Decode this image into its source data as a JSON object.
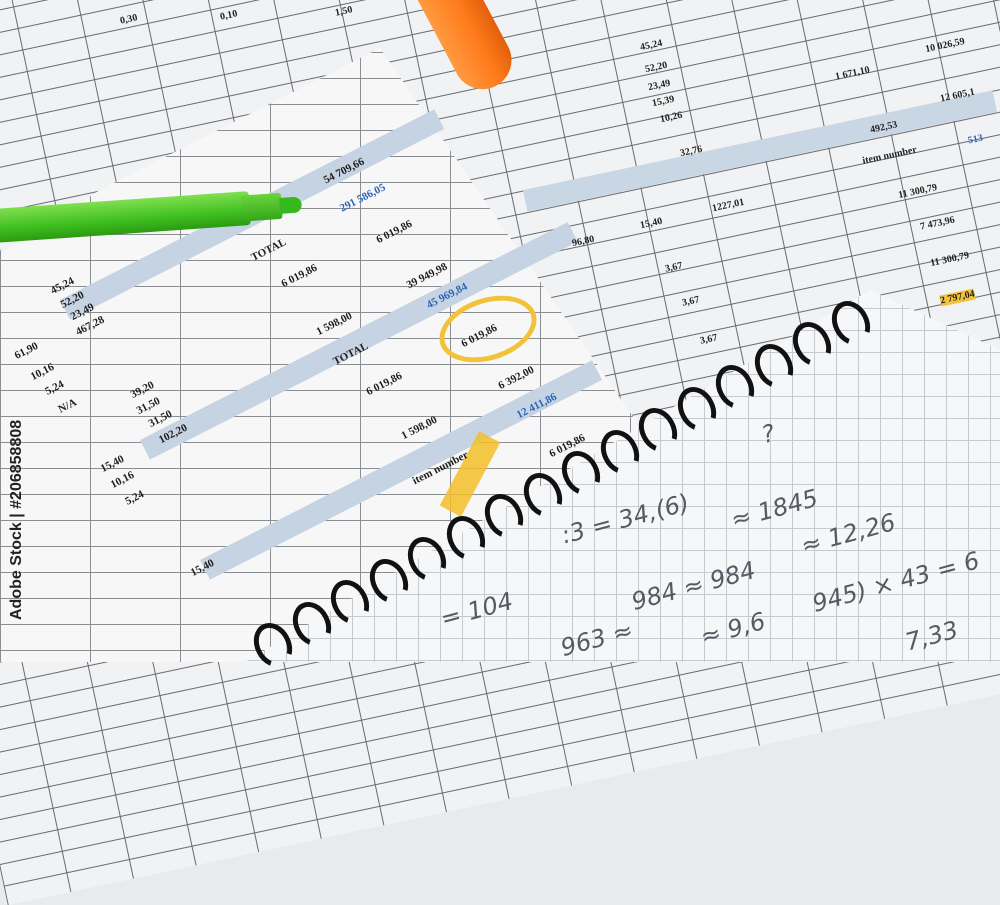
{
  "watermark": "Adobe Stock | #206858808",
  "background_sheet": {
    "values": [
      "0,30",
      "0,10",
      "1,50",
      "45,24",
      "52,20",
      "23,49",
      "15,39",
      "10,26",
      "32,76",
      "1 671,10",
      "10 026,59",
      "12 605,1",
      "492,53",
      "11 300,79",
      "7 473,96",
      "11 300,79",
      "2 797,04",
      "96,80",
      "15,40",
      "1227,01",
      "3,67",
      "3,67",
      "3,67",
      "item number",
      "513"
    ]
  },
  "front_sheet": {
    "rows": [
      {
        "label": "",
        "value": "54 709,66"
      },
      {
        "label": "",
        "value": "291 586,05"
      },
      {
        "label": "TOTAL",
        "value": "6 019,86"
      },
      {
        "label": "",
        "value": "6 019,86"
      },
      {
        "label": "",
        "value": "39 949,98"
      },
      {
        "label": "",
        "value": "1 598,00"
      },
      {
        "label": "",
        "value": "45 969,84"
      },
      {
        "label": "TOTAL",
        "value": "6 019,86"
      },
      {
        "label": "",
        "value": "6 019,86"
      },
      {
        "label": "",
        "value": "6 392,00"
      },
      {
        "label": "",
        "value": "1 598,00"
      },
      {
        "label": "",
        "value": "12 411,86"
      },
      {
        "label": "item number",
        "value": "6 019,86"
      }
    ],
    "left_column": [
      "45,24",
      "52,20",
      "23,49",
      "467,28",
      "61,90",
      "10,16",
      "5,24",
      "N/A",
      "39,20",
      "31,50",
      "31,50",
      "102,20",
      "15,40",
      "10,16",
      "5,24",
      "15,40"
    ]
  },
  "notebook": {
    "handwriting": [
      ":3 = 34,(6)",
      "?",
      "≈ 1845",
      "984 ≈ 984",
      "≈ 12,26",
      "= 104",
      "≈ 9,6",
      "963 ≈",
      "945) × 43 = 6",
      "7,33"
    ]
  },
  "colors": {
    "green_marker": "#3fbf1f",
    "orange_marker": "#ff7a1a",
    "highlight": "#f2c23a",
    "blue_band": "#c5d3e2",
    "blue_text": "#2a64b8"
  }
}
